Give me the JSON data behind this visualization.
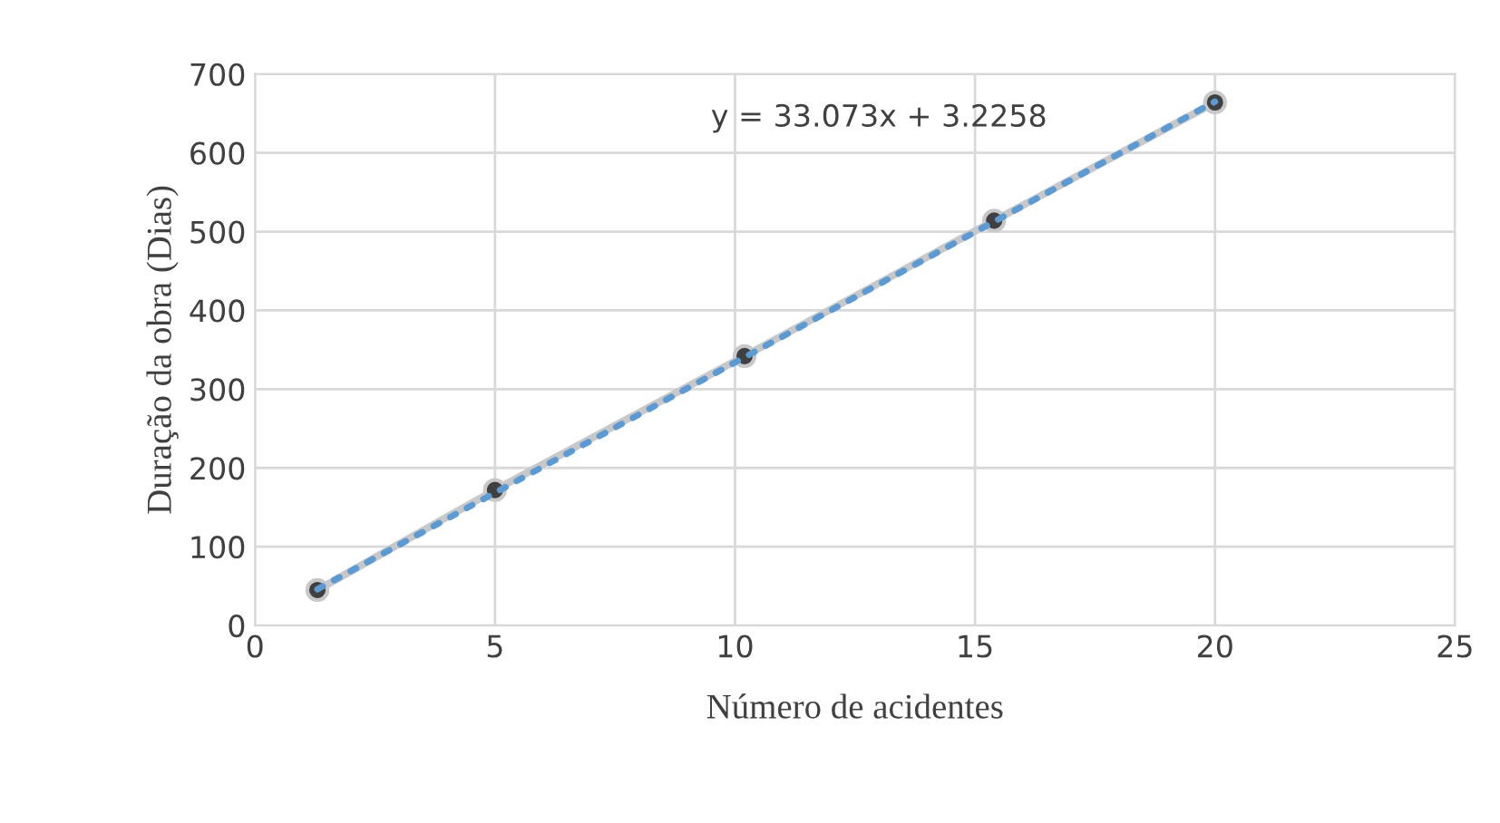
{
  "chart_data": {
    "type": "line",
    "xlabel": "Número de acidentes",
    "ylabel": "Duração da obra (Dias)",
    "series": [
      {
        "color": "#c8c8c8",
        "marker": "circle",
        "x": [
          1.3,
          5.0,
          10.2,
          15.4,
          20.0
        ],
        "values": [
          45,
          172,
          342,
          514,
          664
        ]
      },
      {
        "type": "line",
        "color": "#5b9bd5",
        "line_style": "dotted",
        "marker": "none",
        "x": [
          1.3,
          20.0
        ],
        "values": [
          46,
          665
        ]
      }
    ],
    "annotations": [
      "y = 33.073x + 3.2258"
    ],
    "xlim": [
      0,
      25
    ],
    "xticks": [
      0,
      5,
      10,
      15,
      20,
      25
    ],
    "ylim": [
      0,
      700
    ],
    "yticks": [
      0,
      100,
      200,
      300,
      400,
      500,
      600,
      700
    ],
    "grid": true
  }
}
